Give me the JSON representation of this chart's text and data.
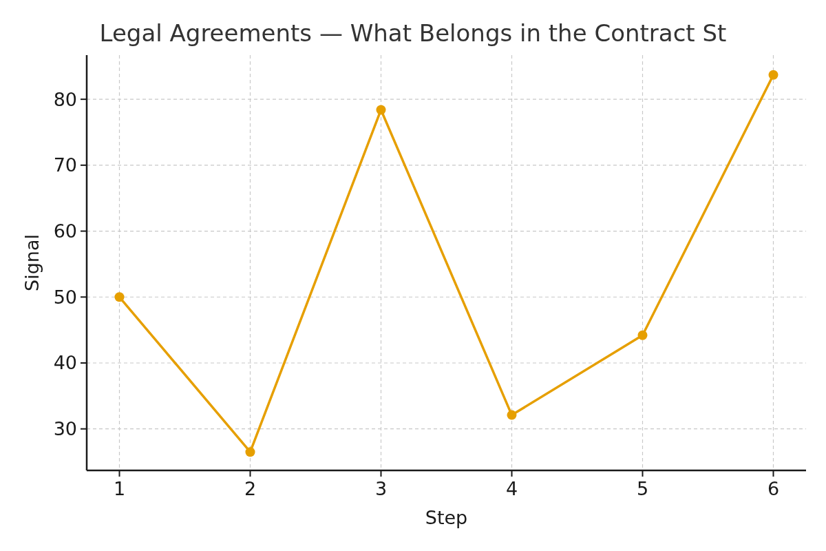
{
  "chart_data": {
    "type": "line",
    "title": "Legal Agreements — What Belongs in the Contract St",
    "xlabel": "Step",
    "ylabel": "Signal",
    "x": [
      1,
      2,
      3,
      4,
      5,
      6
    ],
    "series": [
      {
        "color": "#e69f00",
        "values": [
          50.0,
          26.5,
          78.4,
          32.1,
          44.2,
          83.7
        ]
      }
    ],
    "xlim": [
      0.75,
      6.25
    ],
    "xticks": [
      1,
      2,
      3,
      4,
      5,
      6
    ],
    "ylim": [
      23.7,
      86.7
    ],
    "yticks": [
      30,
      40,
      50,
      60,
      70,
      80
    ],
    "grid": true,
    "marker": "circle",
    "line_style": "solid"
  }
}
